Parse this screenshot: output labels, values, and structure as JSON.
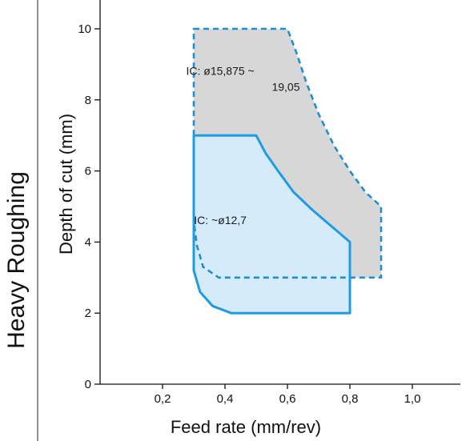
{
  "chart_data": {
    "type": "area",
    "side_title": "Heavy Roughing",
    "xlabel": "Feed rate (mm/rev)",
    "ylabel": "Depth of cut (mm)",
    "xlim": [
      0,
      1.1
    ],
    "ylim": [
      0,
      10.5
    ],
    "x_ticks": [
      {
        "value": 0.2,
        "label": "0,2"
      },
      {
        "value": 0.4,
        "label": "0,4"
      },
      {
        "value": 0.6,
        "label": "0,6"
      },
      {
        "value": 0.8,
        "label": "0,8"
      },
      {
        "value": 1.0,
        "label": "1,0"
      }
    ],
    "y_ticks": [
      {
        "value": 0,
        "label": "0"
      },
      {
        "value": 2,
        "label": "2"
      },
      {
        "value": 4,
        "label": "4"
      },
      {
        "value": 6,
        "label": "6"
      },
      {
        "value": 8,
        "label": "8"
      },
      {
        "value": 10,
        "label": "10"
      }
    ],
    "grid": false,
    "series": [
      {
        "label_lines": [
          "IC: ø15,875 ~",
          "19,05"
        ],
        "label_anchor": [
          0.45,
          8.7
        ],
        "fill_color": "#d7d7d7",
        "stroke_color": "#1d8fd1",
        "stroke_style": "dashed",
        "points": [
          [
            0.3,
            10.0
          ],
          [
            0.6,
            10.0
          ],
          [
            0.63,
            9.3
          ],
          [
            0.66,
            8.5
          ],
          [
            0.7,
            7.6
          ],
          [
            0.75,
            6.7
          ],
          [
            0.8,
            6.0
          ],
          [
            0.85,
            5.4
          ],
          [
            0.9,
            5.0
          ],
          [
            0.9,
            3.0
          ],
          [
            0.38,
            3.0
          ],
          [
            0.33,
            3.3
          ],
          [
            0.31,
            3.9
          ],
          [
            0.3,
            4.6
          ]
        ]
      },
      {
        "label_lines": [
          "IC: ~ø12,7"
        ],
        "label_anchor": [
          0.48,
          4.5
        ],
        "fill_color": "#d6ebf9",
        "stroke_color": "#1d9be3",
        "stroke_style": "solid",
        "points": [
          [
            0.3,
            7.0
          ],
          [
            0.5,
            7.0
          ],
          [
            0.53,
            6.5
          ],
          [
            0.57,
            6.0
          ],
          [
            0.62,
            5.4
          ],
          [
            0.68,
            4.9
          ],
          [
            0.74,
            4.45
          ],
          [
            0.8,
            4.0
          ],
          [
            0.8,
            2.0
          ],
          [
            0.42,
            2.0
          ],
          [
            0.36,
            2.2
          ],
          [
            0.32,
            2.6
          ],
          [
            0.3,
            3.2
          ]
        ]
      }
    ],
    "colors": {
      "dashed_region_fill": "#d7d7d7",
      "solid_region_fill": "#d6ebf9",
      "outline_blue": "#1d9be3",
      "axis": "#111111"
    }
  }
}
